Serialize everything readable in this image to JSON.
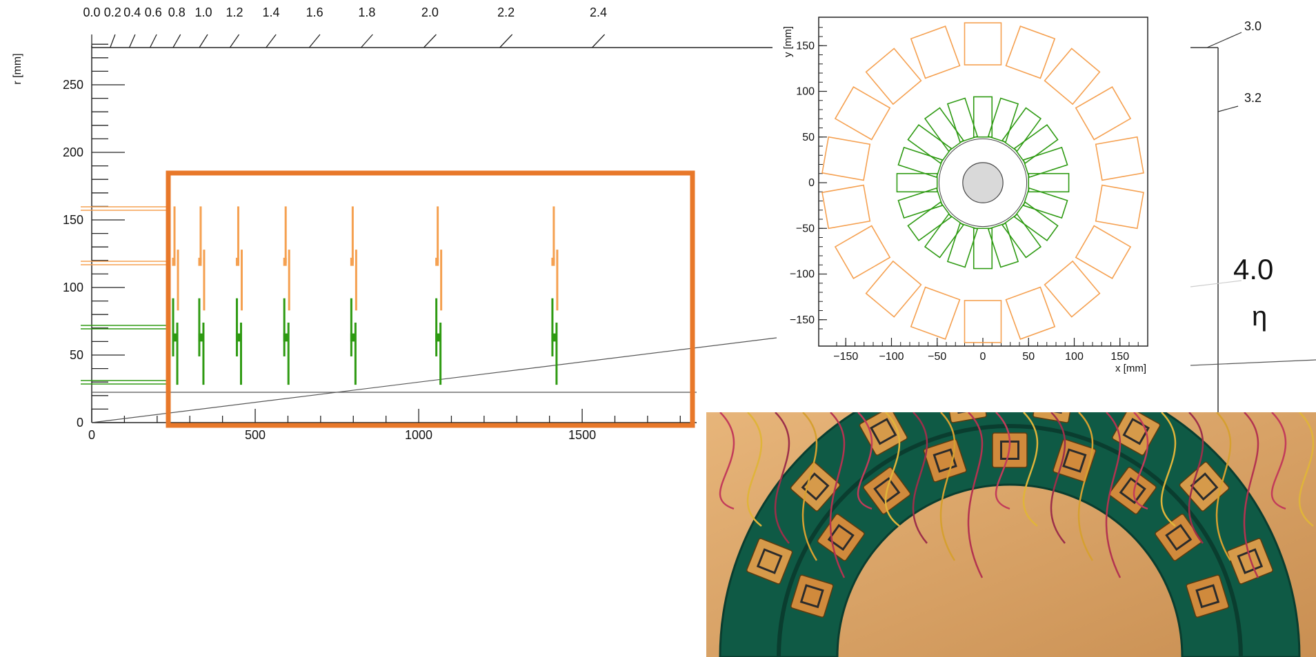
{
  "rz_view": {
    "r_axis_label": "r [mm]",
    "z_ticks": [
      0,
      500,
      1000,
      1500
    ],
    "r_ticks": [
      0,
      50,
      100,
      150,
      200,
      250
    ],
    "eta_ticks": [
      "0.0",
      "0.2",
      "0.4",
      "0.6",
      "0.8",
      "1.0",
      "1.2",
      "1.4",
      "1.6",
      "1.8",
      "2.0",
      "2.2",
      "2.4"
    ],
    "eta_ticks_right": [
      "3.0",
      "3.2"
    ],
    "eta_big_value": "4.0",
    "eta_symbol": "η",
    "disk_z_mm": [
      250,
      330,
      445,
      590,
      795,
      1055,
      1410
    ],
    "colors": {
      "outer_ring": "#f5a050",
      "inner_ring": "#2e9a12",
      "highlight_box": "#e8782a",
      "axis": "#222222"
    }
  },
  "xy_view": {
    "x_label": "x [mm]",
    "y_label": "y [mm]",
    "x_ticks": [
      -150,
      -100,
      -50,
      0,
      50,
      100,
      150
    ],
    "y_ticks": [
      -150,
      -100,
      -50,
      0,
      50,
      100,
      150
    ],
    "inner_ring_modules": 20,
    "outer_ring_modules": 18,
    "inner_ring_radius_mm": 72,
    "outer_ring_radius_mm": 152,
    "beampipe_radius_mm": 22,
    "colors": {
      "inner": "#2e9a12",
      "outer": "#f5a050",
      "beampipe": "#d9d9d9"
    }
  },
  "photo": {
    "description_icon": "detector-half-disk-photo"
  }
}
